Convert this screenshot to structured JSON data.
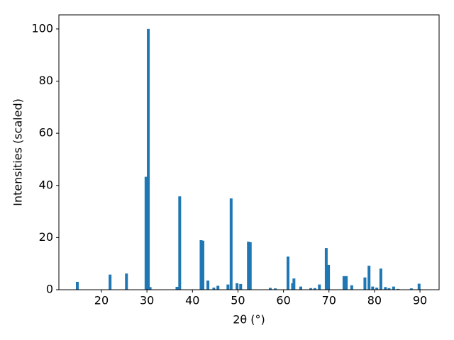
{
  "chart_data": {
    "type": "bar",
    "xlabel": "2θ (°)",
    "ylabel": "Intensities (scaled)",
    "x": [
      14.7,
      21.9,
      25.5,
      29.8,
      30.3,
      30.7,
      36.6,
      37.2,
      41.9,
      42.3,
      43.4,
      44.7,
      45.6,
      47.8,
      48.5,
      49.8,
      50.6,
      52.3,
      52.7,
      57.1,
      58.2,
      61.0,
      62.0,
      62.3,
      63.8,
      66.0,
      66.9,
      67.9,
      69.4,
      69.9,
      73.3,
      73.8,
      75.0,
      77.9,
      78.8,
      79.6,
      80.5,
      81.4,
      82.4,
      83.2,
      84.2,
      85.2,
      88.1,
      89.8
    ],
    "values": [
      3.0,
      5.8,
      6.2,
      43.3,
      100,
      1.0,
      1.1,
      35.8,
      19.0,
      18.8,
      3.5,
      0.8,
      1.5,
      2.0,
      35.0,
      2.5,
      2.2,
      18.4,
      18.2,
      0.7,
      0.5,
      12.7,
      2.5,
      4.3,
      1.2,
      0.6,
      0.6,
      2.0,
      16.0,
      9.5,
      5.2,
      5.2,
      1.7,
      4.7,
      9.2,
      1.2,
      0.8,
      8.1,
      1.0,
      0.6,
      1.2,
      0.3,
      0.5,
      2.3
    ],
    "color": "#1f77b4",
    "xlim": [
      10.65,
      94.2
    ],
    "xticks": [
      20,
      30,
      40,
      50,
      60,
      70,
      80,
      90
    ],
    "ylim": [
      0,
      105.4
    ],
    "yticks": [
      0,
      20,
      40,
      60,
      80,
      100
    ]
  }
}
